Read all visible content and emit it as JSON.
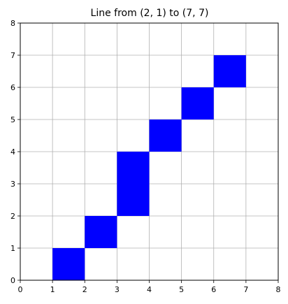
{
  "chart_data": {
    "type": "heatmap",
    "title": "Line from (2, 1) to (7, 7)",
    "xlabel": "",
    "ylabel": "",
    "xlim": [
      0,
      8
    ],
    "ylim": [
      0,
      8
    ],
    "xticks": [
      0,
      1,
      2,
      3,
      4,
      5,
      6,
      7,
      8
    ],
    "yticks": [
      0,
      1,
      2,
      3,
      4,
      5,
      6,
      7,
      8
    ],
    "grid": true,
    "cell_color": "#0000ff",
    "grid_color": "#b0b0b0",
    "cells": [
      {
        "x": 1,
        "y": 0
      },
      {
        "x": 2,
        "y": 1
      },
      {
        "x": 3,
        "y": 2
      },
      {
        "x": 3,
        "y": 3
      },
      {
        "x": 4,
        "y": 4
      },
      {
        "x": 5,
        "y": 5
      },
      {
        "x": 6,
        "y": 6
      }
    ]
  }
}
